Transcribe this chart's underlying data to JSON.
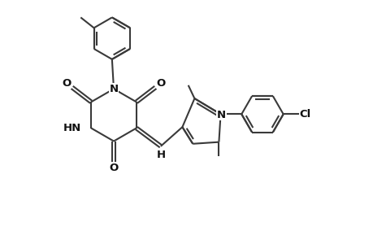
{
  "bg_color": "#ffffff",
  "line_color": "#3a3a3a",
  "line_width": 1.5,
  "figsize": [
    4.6,
    3.0
  ],
  "dpi": 100,
  "xlim": [
    -0.5,
    9.5
  ],
  "ylim": [
    -0.5,
    6.5
  ]
}
